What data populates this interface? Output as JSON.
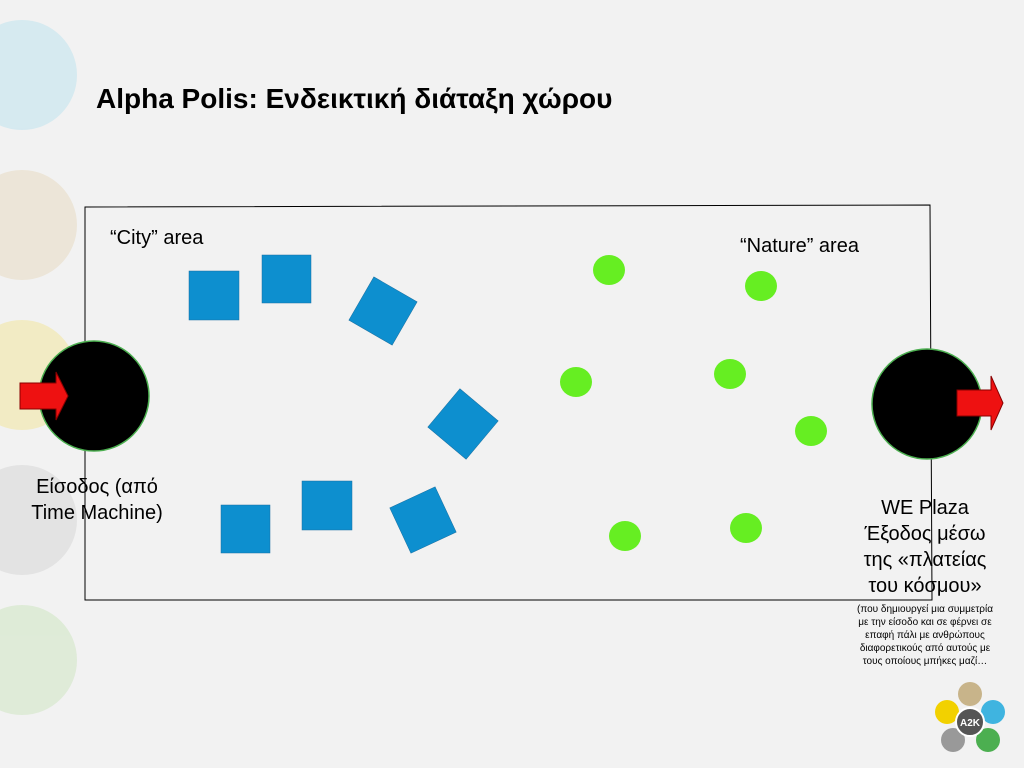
{
  "title": "Alpha Polis: Ενδεικτική διάταξη χώρου",
  "areas": {
    "city": "“City” area",
    "nature": "“Nature” area"
  },
  "entrance": {
    "lines": [
      "Είσοδος (από",
      "Time Machine)"
    ]
  },
  "exit": {
    "lines": [
      "WE Plaza",
      "Έξοδος μέσω",
      "της «πλατείας",
      "του κόσμου»"
    ],
    "note_lines": [
      "(που δημιουργεί μια συμμετρία",
      "με την είσοδο και σε φέρνει σε",
      "επαφή πάλι με ανθρώπους",
      "διαφορετικούς από αυτούς με",
      "τους οποίους μπήκες μαζί…"
    ]
  },
  "logo": "A2K"
}
